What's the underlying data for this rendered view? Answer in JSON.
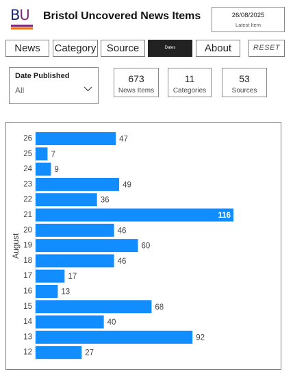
{
  "header": {
    "logo": {
      "b": "B",
      "u": "U"
    },
    "title": "Bristol Uncovered News Items",
    "latest": {
      "date": "26/08/2025",
      "label": "Latest Item"
    }
  },
  "nav": {
    "news": "News",
    "category": "Category",
    "source": "Source",
    "dates": "Dates",
    "about": "About",
    "reset": "RESET"
  },
  "slicer": {
    "title": "Date Published",
    "value": "All"
  },
  "kpis": {
    "news_items": {
      "value": "673",
      "label": "News Items"
    },
    "categories": {
      "value": "11",
      "label": "Categories"
    },
    "sources": {
      "value": "53",
      "label": "Sources"
    }
  },
  "colors": {
    "bar": "#118dff",
    "accent_dark": "#222222"
  },
  "chart_data": {
    "type": "bar",
    "orientation": "horizontal",
    "ylabel": "August",
    "categories": [
      "26",
      "25",
      "24",
      "23",
      "22",
      "21",
      "20",
      "19",
      "18",
      "17",
      "16",
      "15",
      "14",
      "13",
      "12"
    ],
    "values": [
      47,
      7,
      9,
      49,
      36,
      116,
      46,
      60,
      46,
      17,
      13,
      68,
      40,
      92,
      27
    ],
    "xlim": [
      0,
      116
    ],
    "grid": false,
    "data_labels": true
  }
}
